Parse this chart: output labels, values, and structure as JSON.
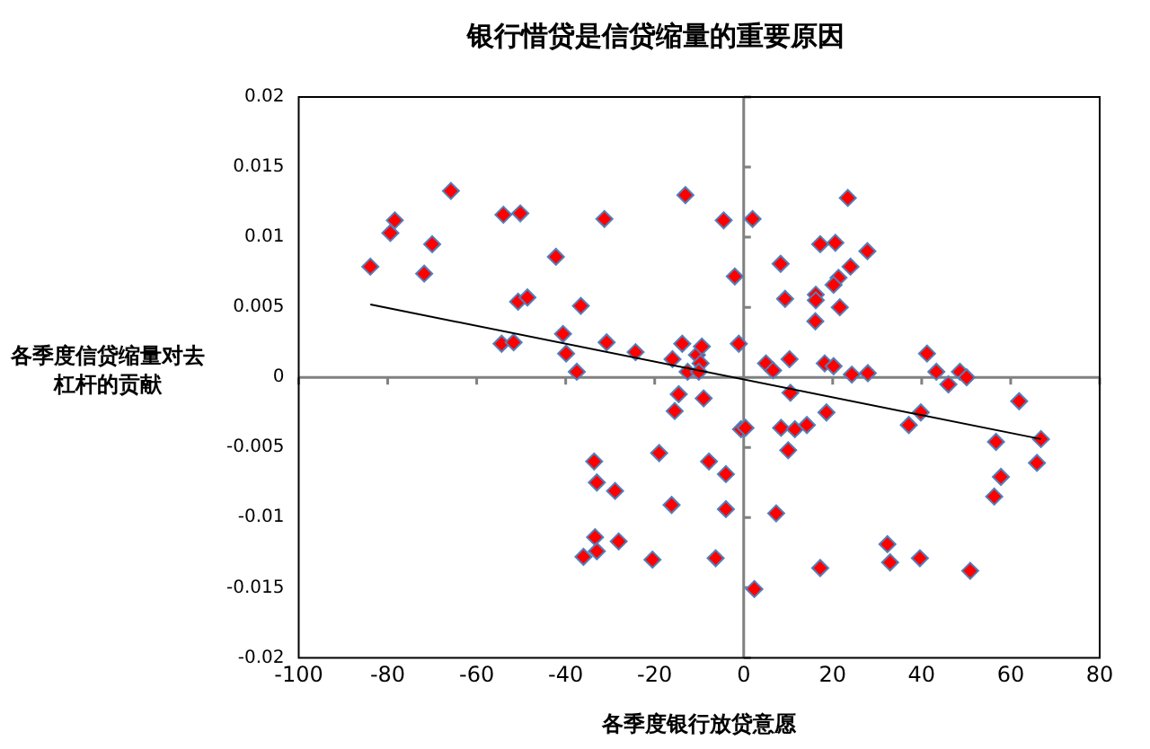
{
  "chart_data": {
    "type": "scatter",
    "title": "银行惜贷是信贷缩量的重要原因",
    "xlabel": "各季度银行放贷意愿",
    "ylabel": "各季度信贷缩量对去杠杆的贡献",
    "xlim": [
      -100,
      80
    ],
    "xticks": [
      -100,
      -80,
      -60,
      -40,
      -20,
      0,
      20,
      40,
      60,
      80
    ],
    "ylim": [
      -0.02,
      0.02
    ],
    "yticks": [
      -0.02,
      -0.015,
      -0.01,
      -0.005,
      0,
      0.005,
      0.01,
      0.015,
      0.02
    ],
    "legend": false,
    "marker": "diamond",
    "series": [
      {
        "color": "#ff0000",
        "x": [
          -83.9,
          -79.4,
          -78.4,
          -65.8,
          -70.0,
          -71.8,
          -54.0,
          -50.2,
          -50.7,
          -48.6,
          -54.4,
          -51.7,
          -31.3,
          -13.1,
          -4.5,
          2.0,
          -42.2,
          -2.0,
          -36.6,
          -40.6,
          -39.9,
          -37.5,
          -30.8,
          -24.3,
          -16.0,
          -13.8,
          -10.5,
          -9.4,
          -9.7,
          -12.6,
          -10.1,
          -1.1,
          -14.6,
          23.4,
          17.2,
          20.6,
          27.8,
          8.3,
          24.0,
          21.3,
          20.2,
          9.3,
          16.2,
          16.2,
          21.6,
          16.1,
          10.3,
          5.0,
          6.6,
          18.2,
          20.2,
          24.3,
          27.9,
          41.2,
          43.3,
          48.6,
          50.1,
          46.0,
          10.5,
          18.6,
          -0.6,
          0.4,
          8.4,
          11.5,
          14.2,
          10.0,
          -4.0,
          -4.0,
          7.3,
          2.4,
          17.2,
          32.3,
          32.9,
          39.6,
          50.9,
          37.1,
          39.8,
          56.7,
          61.9,
          66.8,
          65.9,
          57.8,
          56.3,
          -9.0,
          -15.5,
          -33.6,
          -33.0,
          -28.9,
          -19.0,
          -7.8,
          -16.2,
          -33.4,
          -33.0,
          -36.0,
          -28.1,
          -20.5,
          -6.3
        ],
        "values": [
          0.0079,
          0.0103,
          0.0112,
          0.0133,
          0.0095,
          0.0074,
          0.0116,
          0.0117,
          0.0054,
          0.0057,
          0.0024,
          0.0025,
          0.0113,
          0.013,
          0.0112,
          0.0113,
          0.0086,
          0.0072,
          0.0051,
          0.0031,
          0.0017,
          0.0004,
          0.0025,
          0.0018,
          0.0013,
          0.0024,
          0.0016,
          0.0022,
          0.001,
          0.0004,
          0.0004,
          0.0024,
          -0.0012,
          0.0128,
          0.0095,
          0.0096,
          0.009,
          0.0081,
          0.0079,
          0.0071,
          0.0066,
          0.0056,
          0.0059,
          0.0055,
          0.005,
          0.004,
          0.0013,
          0.001,
          0.0005,
          0.001,
          0.0008,
          0.0002,
          0.0003,
          0.0017,
          0.0004,
          0.0004,
          0,
          -0.0005,
          -0.0011,
          -0.0025,
          -0.0037,
          -0.0036,
          -0.0036,
          -0.0037,
          -0.0034,
          -0.0052,
          -0.0069,
          -0.0094,
          -0.0097,
          -0.0151,
          -0.0136,
          -0.0119,
          -0.0132,
          -0.0129,
          -0.0138,
          -0.0034,
          -0.0025,
          -0.0046,
          -0.0017,
          -0.0044,
          -0.0061,
          -0.0071,
          -0.0085,
          -0.0015,
          -0.0024,
          -0.006,
          -0.0075,
          -0.0081,
          -0.0054,
          -0.006,
          -0.0091,
          -0.0114,
          -0.0124,
          -0.0128,
          -0.0117,
          -0.013,
          -0.0129
        ]
      },
      {
        "type": "line",
        "color": "#000000",
        "marker": "none",
        "x": [
          -83.9,
          66.8
        ],
        "values": [
          0.0052,
          -0.0044
        ]
      }
    ]
  }
}
